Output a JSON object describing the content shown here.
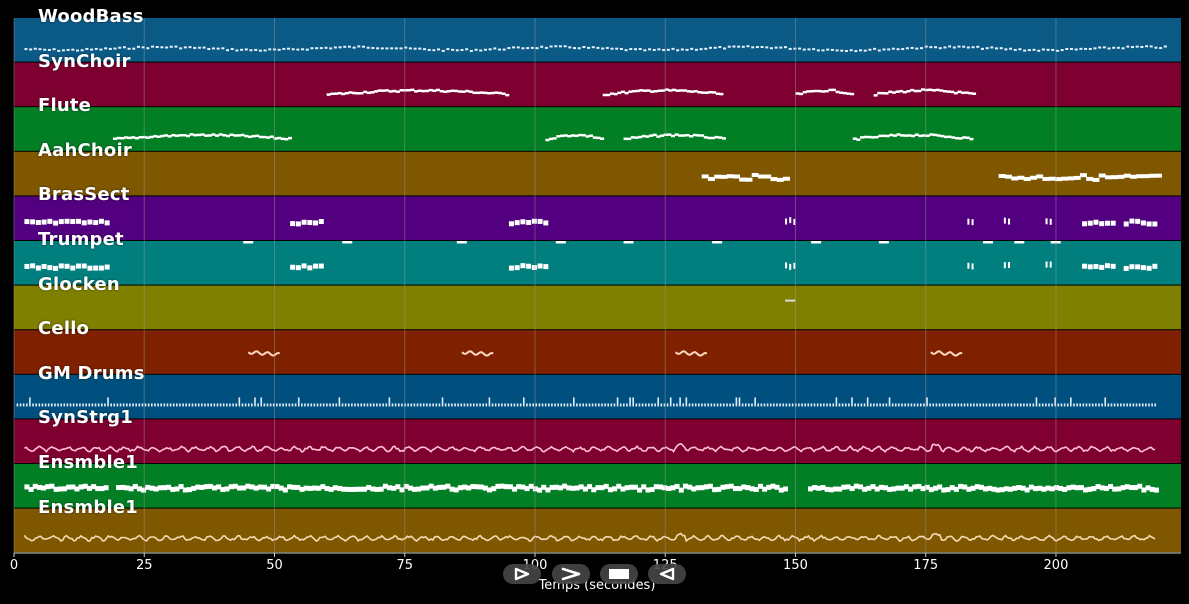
{
  "colors": {
    "background": "#000000",
    "grid": "#9a9a9a",
    "note": "#ffffff"
  },
  "tracks": [
    {
      "name": "WoodBass",
      "color": "#0b5a86",
      "style": "dots"
    },
    {
      "name": "SynChoir",
      "color": "#7d0030",
      "style": "segments",
      "segs": [
        [
          60,
          95
        ],
        [
          113,
          136
        ],
        [
          150,
          161
        ],
        [
          165,
          184
        ]
      ]
    },
    {
      "name": "Flute",
      "color": "#027f25",
      "style": "segments",
      "segs": [
        [
          19,
          53
        ],
        [
          102,
          113
        ],
        [
          117,
          136
        ],
        [
          161,
          184
        ]
      ]
    },
    {
      "name": "AahChoir",
      "color": "#7e5700",
      "style": "blocks",
      "segs": [
        [
          132,
          148
        ],
        [
          189,
          219
        ]
      ]
    },
    {
      "name": "BrasSect",
      "color": "#52007f",
      "style": "pulses",
      "segs": [
        [
          2,
          18
        ],
        [
          53,
          59
        ],
        [
          95,
          102
        ],
        [
          148,
          150
        ],
        [
          183,
          184
        ],
        [
          190,
          191
        ],
        [
          198,
          199
        ],
        [
          205,
          211
        ],
        [
          213,
          219
        ]
      ]
    },
    {
      "name": "Trumpet",
      "color": "#017f7f",
      "style": "pulses",
      "segs": [
        [
          2,
          18
        ],
        [
          53,
          59
        ],
        [
          95,
          102
        ],
        [
          148,
          150
        ],
        [
          183,
          184
        ],
        [
          190,
          191
        ],
        [
          198,
          199
        ],
        [
          205,
          211
        ],
        [
          213,
          219
        ]
      ],
      "marks": [
        44,
        63,
        85,
        104,
        117,
        134,
        153,
        166,
        186,
        192,
        199
      ]
    },
    {
      "name": "Glocken",
      "color": "#7f7f00",
      "style": "tiny",
      "segs": [
        [
          148,
          150
        ]
      ]
    },
    {
      "name": "Cello",
      "color": "#7f2100",
      "style": "curls",
      "segs": [
        [
          45,
          51
        ],
        [
          86,
          92
        ],
        [
          127,
          133
        ],
        [
          176,
          182
        ]
      ]
    },
    {
      "name": "GM Drums",
      "color": "#00507f",
      "style": "drums"
    },
    {
      "name": "SynStrg1",
      "color": "#7f0030",
      "style": "wave"
    },
    {
      "name": "Ensmble1",
      "color": "#027f25",
      "style": "thick"
    },
    {
      "name": "Ensmble1",
      "color": "#7e5700",
      "style": "wave"
    }
  ],
  "chart_data": {
    "type": "piano-roll",
    "xlabel": "Temps (secondes)",
    "xlim": [
      0,
      224
    ],
    "ticks": [
      0,
      25,
      50,
      75,
      100,
      125,
      150,
      175,
      200
    ],
    "series": [
      {
        "name": "WoodBass",
        "intervals": [
          [
            2,
            221
          ]
        ]
      },
      {
        "name": "SynChoir",
        "intervals": [
          [
            60,
            95
          ],
          [
            113,
            136
          ],
          [
            150,
            161
          ],
          [
            165,
            184
          ]
        ]
      },
      {
        "name": "Flute",
        "intervals": [
          [
            19,
            53
          ],
          [
            102,
            113
          ],
          [
            117,
            136
          ],
          [
            161,
            184
          ]
        ]
      },
      {
        "name": "AahChoir",
        "intervals": [
          [
            132,
            148
          ],
          [
            189,
            219
          ]
        ]
      },
      {
        "name": "BrasSect",
        "intervals": [
          [
            2,
            18
          ],
          [
            53,
            59
          ],
          [
            95,
            102
          ],
          [
            148,
            150
          ],
          [
            183,
            184
          ],
          [
            190,
            191
          ],
          [
            198,
            199
          ],
          [
            205,
            211
          ],
          [
            213,
            219
          ]
        ]
      },
      {
        "name": "Trumpet",
        "intervals": [
          [
            2,
            18
          ],
          [
            53,
            59
          ],
          [
            95,
            102
          ],
          [
            148,
            150
          ],
          [
            183,
            184
          ],
          [
            190,
            191
          ],
          [
            198,
            199
          ],
          [
            205,
            211
          ],
          [
            213,
            219
          ]
        ]
      },
      {
        "name": "Glocken",
        "intervals": [
          [
            148,
            150
          ]
        ]
      },
      {
        "name": "Cello",
        "intervals": [
          [
            45,
            51
          ],
          [
            86,
            92
          ],
          [
            127,
            133
          ],
          [
            176,
            182
          ]
        ]
      },
      {
        "name": "GM Drums",
        "intervals": [
          [
            0,
            219
          ]
        ]
      },
      {
        "name": "SynStrg1",
        "intervals": [
          [
            2,
            219
          ]
        ]
      },
      {
        "name": "Ensmble1",
        "intervals": [
          [
            2,
            219
          ]
        ]
      },
      {
        "name": "Ensmble1",
        "intervals": [
          [
            2,
            219
          ]
        ]
      }
    ]
  },
  "controls": {
    "play_icon": "play-icon",
    "forward_icon": "forward-icon",
    "stop_icon": "stop-icon",
    "back_icon": "back-icon"
  }
}
